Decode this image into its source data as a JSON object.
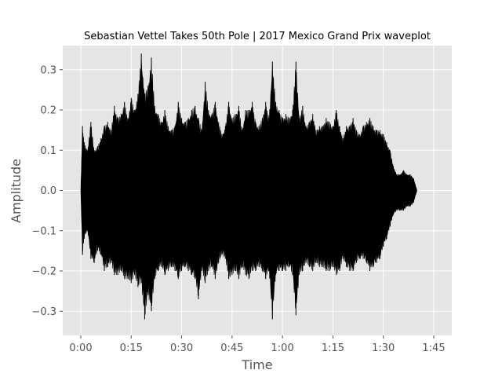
{
  "chart_data": {
    "type": "area",
    "title": "Sebastian Vettel Takes 50th Pole | 2017 Mexico Grand Prix waveplot",
    "xlabel": "Time",
    "ylabel": "Amplitude",
    "x_unit": "seconds",
    "xlim": [
      0,
      105
    ],
    "ylim": [
      -0.36,
      0.36
    ],
    "x_ticks": [
      {
        "value": 0,
        "label": "0:00"
      },
      {
        "value": 15,
        "label": "0:15"
      },
      {
        "value": 30,
        "label": "0:30"
      },
      {
        "value": 45,
        "label": "0:45"
      },
      {
        "value": 60,
        "label": "1:00"
      },
      {
        "value": 75,
        "label": "1:15"
      },
      {
        "value": 90,
        "label": "1:30"
      },
      {
        "value": 105,
        "label": "1:45"
      }
    ],
    "y_ticks": [
      {
        "value": 0.3,
        "label": "0.3"
      },
      {
        "value": 0.2,
        "label": "0.2"
      },
      {
        "value": 0.1,
        "label": "0.1"
      },
      {
        "value": 0.0,
        "label": "0.0"
      },
      {
        "value": -0.1,
        "label": "−0.1"
      },
      {
        "value": -0.2,
        "label": "−0.2"
      },
      {
        "value": -0.3,
        "label": "−0.3"
      }
    ],
    "grid": true,
    "series": [
      {
        "color": "#000000",
        "x": [
          0,
          0.5,
          1,
          2,
          3,
          4,
          5,
          6,
          7,
          8,
          9,
          10,
          11,
          12,
          13,
          14,
          15,
          16,
          17,
          18,
          19,
          20,
          21,
          22,
          23,
          24,
          25,
          26,
          27,
          28,
          29,
          30,
          31,
          32,
          33,
          34,
          35,
          36,
          37,
          38,
          39,
          40,
          41,
          42,
          43,
          44,
          45,
          46,
          47,
          48,
          49,
          50,
          51,
          52,
          53,
          54,
          55,
          56,
          57,
          58,
          59,
          60,
          61,
          62,
          63,
          64,
          65,
          66,
          67,
          68,
          69,
          70,
          71,
          72,
          73,
          74,
          75,
          76,
          77,
          78,
          79,
          80,
          81,
          82,
          83,
          84,
          85,
          86,
          87,
          88,
          89,
          90,
          91,
          92,
          93,
          94,
          95,
          96,
          97,
          98,
          99,
          100
        ],
        "upper": [
          0.0,
          0.16,
          0.12,
          0.1,
          0.17,
          0.1,
          0.11,
          0.13,
          0.16,
          0.17,
          0.15,
          0.21,
          0.18,
          0.19,
          0.22,
          0.18,
          0.23,
          0.2,
          0.24,
          0.34,
          0.24,
          0.26,
          0.33,
          0.21,
          0.19,
          0.17,
          0.2,
          0.16,
          0.15,
          0.16,
          0.22,
          0.18,
          0.17,
          0.18,
          0.2,
          0.21,
          0.18,
          0.15,
          0.27,
          0.2,
          0.19,
          0.22,
          0.17,
          0.14,
          0.16,
          0.22,
          0.18,
          0.19,
          0.21,
          0.15,
          0.2,
          0.2,
          0.22,
          0.17,
          0.16,
          0.18,
          0.22,
          0.18,
          0.32,
          0.22,
          0.2,
          0.18,
          0.19,
          0.18,
          0.2,
          0.32,
          0.18,
          0.21,
          0.16,
          0.17,
          0.19,
          0.15,
          0.16,
          0.16,
          0.18,
          0.17,
          0.16,
          0.2,
          0.16,
          0.13,
          0.16,
          0.16,
          0.18,
          0.15,
          0.14,
          0.16,
          0.17,
          0.18,
          0.16,
          0.15,
          0.15,
          0.14,
          0.12,
          0.1,
          0.06,
          0.04,
          0.04,
          0.05,
          0.04,
          0.04,
          0.03,
          0.0
        ],
        "lower": [
          0.0,
          -0.16,
          -0.12,
          -0.1,
          -0.17,
          -0.18,
          -0.15,
          -0.16,
          -0.2,
          -0.19,
          -0.18,
          -0.21,
          -0.21,
          -0.2,
          -0.22,
          -0.22,
          -0.23,
          -0.21,
          -0.24,
          -0.23,
          -0.32,
          -0.26,
          -0.3,
          -0.22,
          -0.2,
          -0.19,
          -0.21,
          -0.2,
          -0.19,
          -0.2,
          -0.22,
          -0.2,
          -0.19,
          -0.2,
          -0.21,
          -0.22,
          -0.27,
          -0.2,
          -0.23,
          -0.2,
          -0.19,
          -0.22,
          -0.18,
          -0.16,
          -0.17,
          -0.22,
          -0.21,
          -0.2,
          -0.22,
          -0.19,
          -0.21,
          -0.22,
          -0.2,
          -0.2,
          -0.19,
          -0.2,
          -0.22,
          -0.2,
          -0.32,
          -0.21,
          -0.2,
          -0.2,
          -0.2,
          -0.19,
          -0.21,
          -0.31,
          -0.21,
          -0.2,
          -0.18,
          -0.19,
          -0.2,
          -0.18,
          -0.19,
          -0.19,
          -0.2,
          -0.2,
          -0.19,
          -0.21,
          -0.2,
          -0.17,
          -0.19,
          -0.2,
          -0.2,
          -0.18,
          -0.17,
          -0.17,
          -0.18,
          -0.2,
          -0.19,
          -0.18,
          -0.17,
          -0.14,
          -0.12,
          -0.09,
          -0.06,
          -0.05,
          -0.05,
          -0.05,
          -0.04,
          -0.04,
          -0.03,
          0.0
        ]
      }
    ]
  }
}
